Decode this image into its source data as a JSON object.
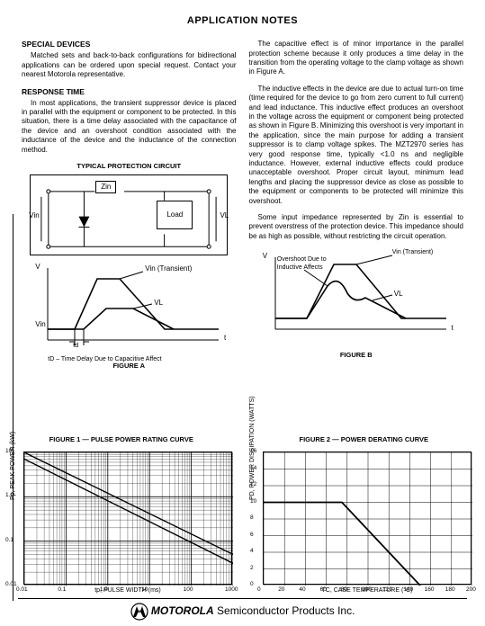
{
  "title": "APPLICATION NOTES",
  "sections": {
    "special_devices": {
      "heading": "SPECIAL DEVICES",
      "body": "Matched sets and back-to-back configurations for bidirectional applications can be ordered upon special request. Contact your nearest Motorola representative."
    },
    "response_time": {
      "heading": "RESPONSE TIME",
      "body": "In most applications, the transient suppressor device is placed in parallel with the equipment or component to be protected. In this situation, there is a time delay associated with the capacitance of the device and an overshoot condition associated with the inductance of the device and the inductance of the connection method."
    },
    "right_p1": "The capacitive effect is of minor importance in the parallel protection scheme because it only produces a time delay in the transition from the operating voltage to the clamp voltage as shown in Figure A.",
    "right_p2": "The inductive effects in the device are due to actual turn-on time (time required for the device to go from zero current to full current) and lead inductance. This inductive effect produces an overshoot in the voltage across the equipment or component being protected as shown in Figure B. Minimizing this overshoot is very important in the application, since the main purpose for adding a transient suppressor is to clamp voltage spikes. The MZT2970 series has very good response time, typically <1.0 ns and negligible inductance. However, external inductive effects could produce unacceptable overshoot. Proper circuit layout, minimum lead lengths and placing the suppressor device as close as possible to the equipment or components to be protected will minimize this overshoot.",
    "right_p3": "Some input impedance represented by Zin is essential to prevent overstress of the protection device. This impedance should be as high as possible, without restricting the circuit operation."
  },
  "figA": {
    "circuit_title": "TYPICAL PROTECTION CIRCUIT",
    "zin": "Zin",
    "load": "Load",
    "vin": "Vin",
    "vl": "VL",
    "vin_trans": "Vin (Transient)",
    "td_note": "tD – Time Delay Due to Capacitive Affect",
    "td": "td",
    "caption": "FIGURE A",
    "axis_v": "V",
    "axis_t": "t"
  },
  "figB": {
    "overshoot": "Overshoot Due to Inductive Affects",
    "vin_trans": "Vin (Transient)",
    "vl": "VL",
    "caption": "FIGURE B",
    "axis_v": "V",
    "axis_t": "t"
  },
  "fig1": {
    "title": "FIGURE 1 — PULSE POWER RATING CURVE",
    "ylabel": "Pp, PEAK POWER (kW)",
    "xlabel": "tp, PULSE WIDTH (ms)",
    "xticks": [
      "0.01",
      "0.1",
      "1.0",
      "10",
      "100",
      "1000"
    ],
    "yticks": [
      "0.01",
      "0.1",
      "1.0",
      "10"
    ],
    "xscale": "log",
    "yscale": "log",
    "background": "#ffffff",
    "grid_color": "#000000",
    "series": [
      {
        "label": "upper",
        "points_log": [
          [
            -2,
            1.0
          ],
          [
            3,
            -1.3
          ]
        ],
        "color": "#000",
        "lw": 1.4
      },
      {
        "label": "lower",
        "points_log": [
          [
            -2,
            0.85
          ],
          [
            3,
            -1.5
          ]
        ],
        "color": "#000",
        "lw": 1.4
      }
    ]
  },
  "fig2": {
    "title": "FIGURE 2 — POWER DERATING CURVE",
    "ylabel": "PD, POWER DISSIPATION (WATTS)",
    "xlabel": "TC, CASE TEMPERATURE (°C)",
    "xlim": [
      0,
      200
    ],
    "ylim": [
      0,
      16
    ],
    "xtick_step": 20,
    "ytick_step": 2,
    "background": "#ffffff",
    "grid_color": "#000000",
    "series": [
      {
        "points": [
          [
            0,
            10
          ],
          [
            75,
            10
          ],
          [
            150,
            0
          ]
        ],
        "color": "#000",
        "lw": 1.8
      }
    ]
  },
  "footer": {
    "brand_bold": "MOTOROLA",
    "brand_rest": " Semiconductor Products Inc."
  }
}
